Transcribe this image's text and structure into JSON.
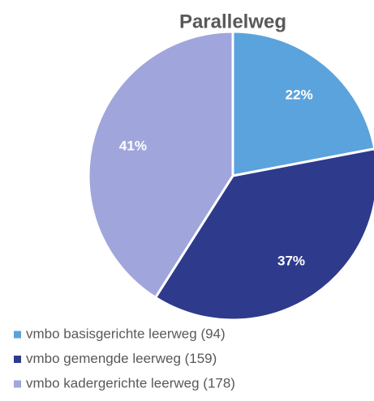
{
  "chart_data": {
    "type": "pie",
    "title": "Parallelweg",
    "categories": [
      "vmbo basisgerichte leerweg (94)",
      "vmbo gemengde leerweg (159)",
      "vmbo kadergerichte leerweg (178)"
    ],
    "values": [
      22,
      37,
      41
    ],
    "value_labels": [
      "22%",
      "37%",
      "41%"
    ],
    "colors": [
      "#5ba3dc",
      "#2e3a8c",
      "#a0a6dc"
    ],
    "legend": "bottom"
  }
}
